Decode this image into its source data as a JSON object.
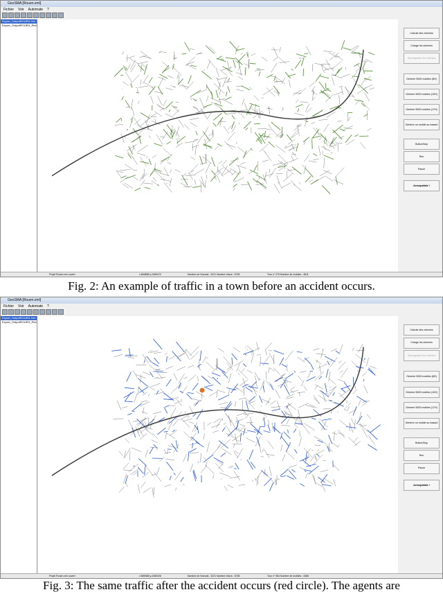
{
  "window": {
    "title": "GeoSMA [Rouen.xml]",
    "menu": [
      "Fichier",
      "Voir",
      "Automate",
      "?"
    ],
    "tree": [
      "Export_OutputROUEN.Xml",
      "Export_OutputROUEN_Reel"
    ]
  },
  "buttons": [
    "Calcule des chemins",
    "Charge les chemins",
    "Sauvegarder les chemins",
    "Générer 5000 mobiles (8H)",
    "Générer 5000 mobiles (10H)",
    "Générer 5000 mobiles (17H)",
    "Générer un mobile au hasard",
    "ButtonStop",
    "Run",
    "Pause",
    "Aerospatiale !"
  ],
  "fig2": {
    "status": [
      "Projet Rouen.xml ouvert",
      "x:554888 y:2469470",
      "Nombre de Noeuds : 3221 Nombre d'arcs : 6728",
      "Tour n° 275 Nombre de mobiles : 4811"
    ],
    "caption": "Fig. 2: An example of traffic in a town before an accident occurs.",
    "traffic_color": "#4a8a2a"
  },
  "fig3": {
    "status": [
      "Projet Rouen.xml ouvert",
      "x:589388 y:2469226",
      "Nombre de Noeuds : 3221 Nombre d'arcs : 6728",
      "Tour n° 984 Nombre de mobiles : 4366"
    ],
    "caption": "Fig. 3: The same traffic after the accident occurs (red circle). The agents are",
    "traffic_color": "#2255dd",
    "accident_color": "#e07020"
  }
}
